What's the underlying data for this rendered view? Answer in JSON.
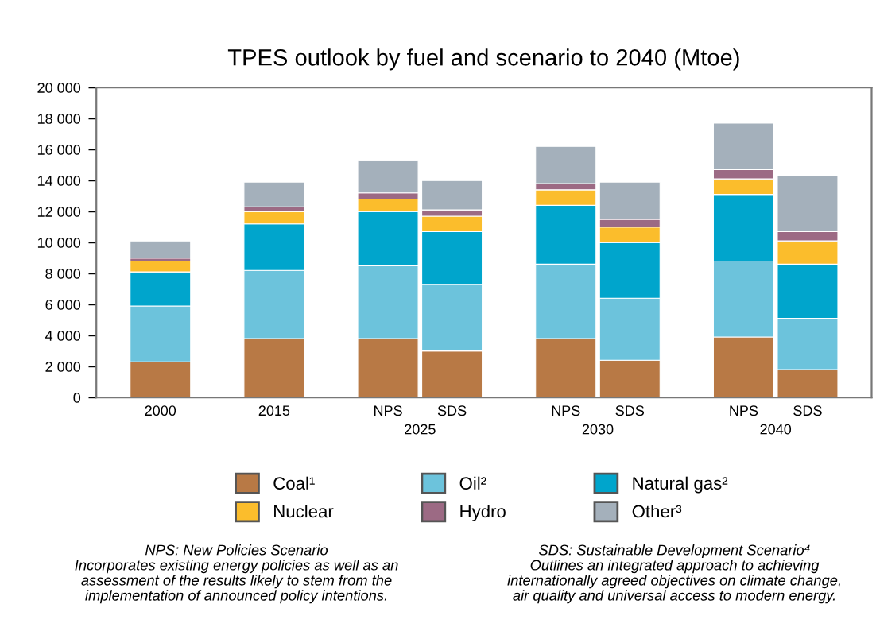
{
  "chart_data": {
    "type": "bar",
    "title": "TPES outlook by fuel and scenario to 2040 (Mtoe)",
    "stacked": true,
    "legend": "bottom",
    "grid": false,
    "categories": [
      "2000",
      "2015",
      "NPS",
      "SDS",
      "NPS",
      "SDS",
      "NPS",
      "SDS"
    ],
    "series": [
      {
        "name": "Coal¹",
        "color": "#b87945",
        "values": [
          2300,
          3800,
          3800,
          3000,
          3800,
          2400,
          3900,
          1800
        ]
      },
      {
        "name": "Oil²",
        "color": "#6cc3dc",
        "values": [
          3600,
          4400,
          4700,
          4300,
          4800,
          4000,
          4900,
          3300
        ]
      },
      {
        "name": "Natural gas²",
        "color": "#00a5cc",
        "values": [
          2200,
          3000,
          3500,
          3400,
          3800,
          3600,
          4300,
          3500
        ]
      },
      {
        "name": "Nuclear",
        "color": "#fbbd2c",
        "values": [
          700,
          800,
          800,
          1000,
          1000,
          1000,
          1000,
          1500
        ]
      },
      {
        "name": "Hydro",
        "color": "#9c6a84",
        "values": [
          200,
          300,
          400,
          400,
          400,
          500,
          600,
          600
        ]
      },
      {
        "name": "Other³",
        "color": "#a4b0bb",
        "values": [
          1100,
          1600,
          2100,
          1900,
          2400,
          2400,
          3000,
          3600
        ]
      }
    ],
    "ylim": [
      0,
      20000
    ],
    "yticks": [
      0,
      {
        "value": 2000,
        "label": "2 000"
      },
      {
        "value": 4000,
        "label": "4 000"
      },
      {
        "value": 6000,
        "label": "6 000"
      },
      {
        "value": 8000,
        "label": "8 000"
      },
      {
        "value": 10000,
        "label": "10 000"
      },
      {
        "value": 12000,
        "label": "12 000"
      },
      {
        "value": 14000,
        "label": "14 000"
      },
      {
        "value": 16000,
        "label": "16 000"
      },
      {
        "value": 18000,
        "label": "18 000"
      },
      {
        "value": 20000,
        "label": "20 000"
      }
    ],
    "annotations": [
      "2025",
      "2030",
      "2040",
      "NPS: New Policies Scenario\nIncorporates existing energy policies as well as an\nassessment of the results likely to stem from the\nimplementation of announced policy intentions.",
      "SDS: Sustainable Development Scenario⁴\nOutlines an integrated approach to achieving\ninternationally agreed objectives on climate change,\nair quality and universal access to modern energy."
    ]
  }
}
